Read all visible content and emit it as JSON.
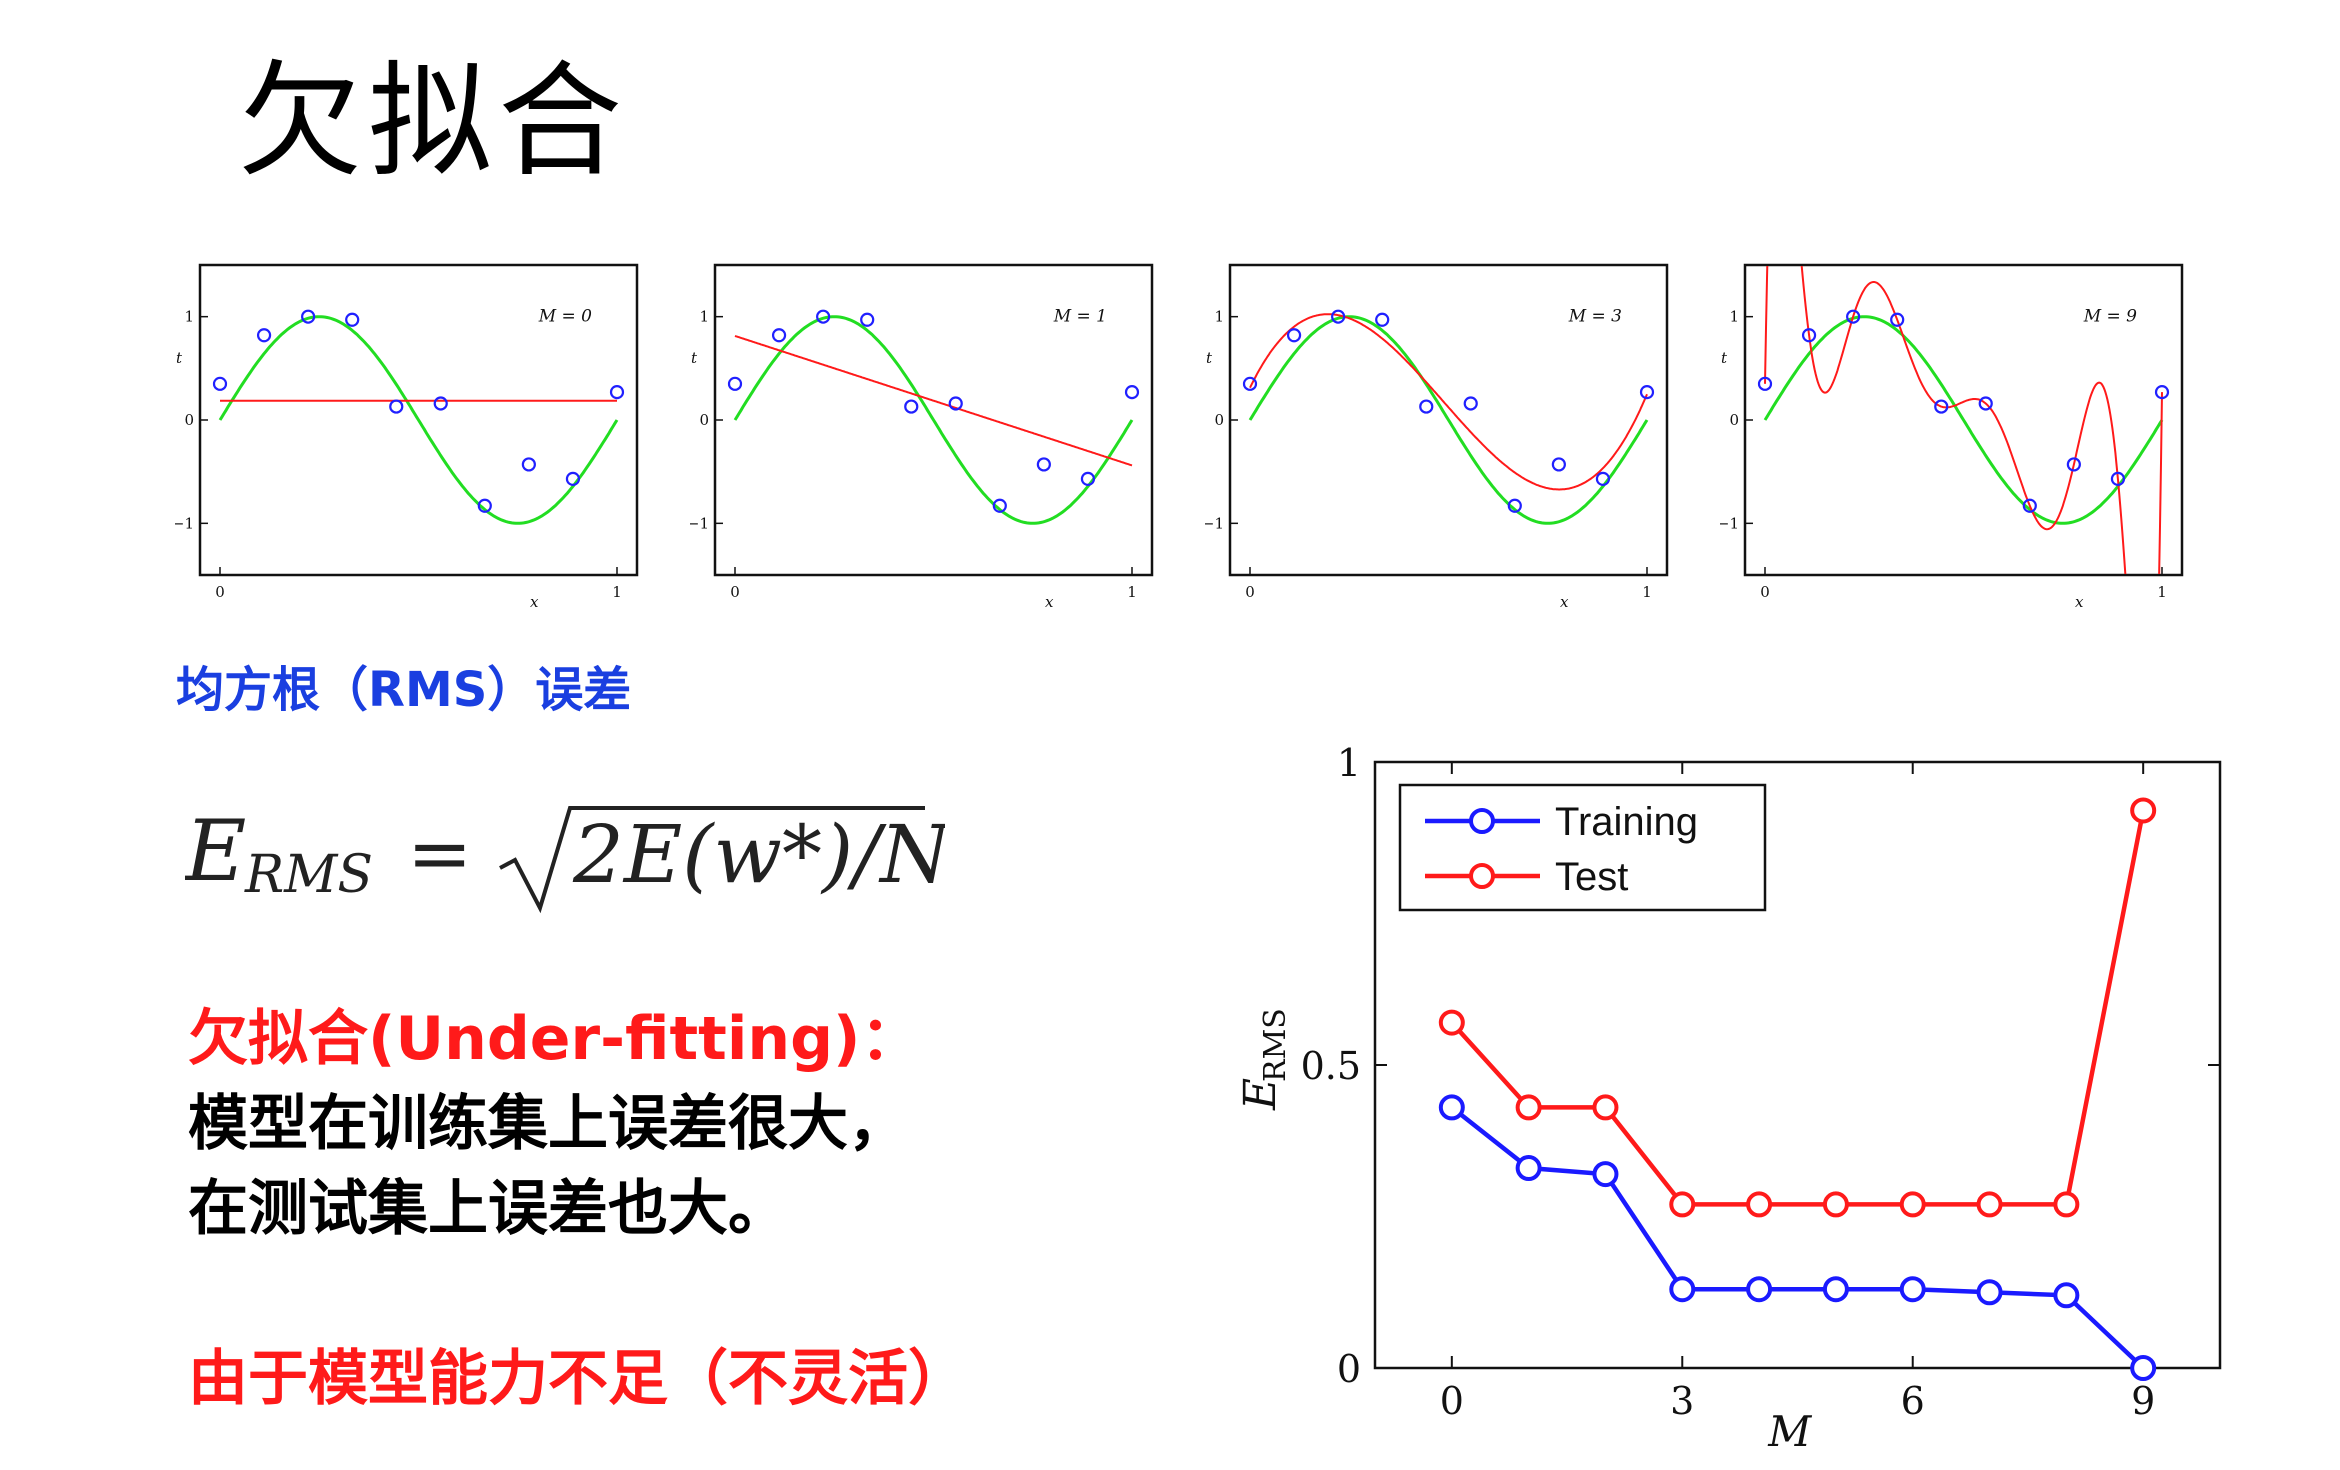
{
  "title": "欠拟合",
  "rms_heading": "均方根（RMS）误差",
  "formula": {
    "lhs_E": "E",
    "lhs_sub": "RMS",
    "equals": "=",
    "rhs": "2E(w*)/N"
  },
  "underfit": {
    "title": "欠拟合(Under-fitting)：",
    "line1": "模型在训练集上误差很大，",
    "line2": "在测试集上误差也大。",
    "reason": "由于模型能力不足（不灵活）"
  },
  "colors": {
    "heading_blue": "#1a3fe0",
    "emphasis_red": "#ff1a1a",
    "training": "#1a1aff",
    "test": "#ff1a1a",
    "true_curve": "#22dd22",
    "fit_curve": "#ff1a1a",
    "points": "#2020ff"
  },
  "chart_data": [
    {
      "type": "line",
      "label": "M = 0",
      "xlabel": "x",
      "ylabel": "t",
      "xlim": [
        0,
        1
      ],
      "ylim": [
        -1.5,
        1.5
      ],
      "x_ticks": [
        "0",
        "1"
      ],
      "y_ticks": [
        "−1",
        "0",
        "1"
      ],
      "points": {
        "x": [
          0,
          0.111,
          0.222,
          0.333,
          0.444,
          0.556,
          0.667,
          0.778,
          0.889,
          1.0
        ],
        "y": [
          0.35,
          0.82,
          1.0,
          0.97,
          0.13,
          0.16,
          -0.83,
          -0.43,
          -0.57,
          0.27
        ]
      },
      "true_curve": "sin(2πx)",
      "fit_degree": 0
    },
    {
      "type": "line",
      "label": "M = 1",
      "xlabel": "x",
      "ylabel": "t",
      "xlim": [
        0,
        1
      ],
      "ylim": [
        -1.5,
        1.5
      ],
      "x_ticks": [
        "0",
        "1"
      ],
      "y_ticks": [
        "−1",
        "0",
        "1"
      ],
      "points": {
        "x": [
          0,
          0.111,
          0.222,
          0.333,
          0.444,
          0.556,
          0.667,
          0.778,
          0.889,
          1.0
        ],
        "y": [
          0.35,
          0.82,
          1.0,
          0.97,
          0.13,
          0.16,
          -0.83,
          -0.43,
          -0.57,
          0.27
        ]
      },
      "true_curve": "sin(2πx)",
      "fit_degree": 1
    },
    {
      "type": "line",
      "label": "M = 3",
      "xlabel": "x",
      "ylabel": "t",
      "xlim": [
        0,
        1
      ],
      "ylim": [
        -1.5,
        1.5
      ],
      "x_ticks": [
        "0",
        "1"
      ],
      "y_ticks": [
        "−1",
        "0",
        "1"
      ],
      "points": {
        "x": [
          0,
          0.111,
          0.222,
          0.333,
          0.444,
          0.556,
          0.667,
          0.778,
          0.889,
          1.0
        ],
        "y": [
          0.35,
          0.82,
          1.0,
          0.97,
          0.13,
          0.16,
          -0.83,
          -0.43,
          -0.57,
          0.27
        ]
      },
      "true_curve": "sin(2πx)",
      "fit_degree": 3
    },
    {
      "type": "line",
      "label": "M = 9",
      "xlabel": "x",
      "ylabel": "t",
      "xlim": [
        0,
        1
      ],
      "ylim": [
        -1.5,
        1.5
      ],
      "x_ticks": [
        "0",
        "1"
      ],
      "y_ticks": [
        "−1",
        "0",
        "1"
      ],
      "points": {
        "x": [
          0,
          0.111,
          0.222,
          0.333,
          0.444,
          0.556,
          0.667,
          0.778,
          0.889,
          1.0
        ],
        "y": [
          0.35,
          0.82,
          1.0,
          0.97,
          0.13,
          0.16,
          -0.83,
          -0.43,
          -0.57,
          0.27
        ]
      },
      "true_curve": "sin(2πx)",
      "fit_degree": 9
    },
    {
      "type": "line",
      "xlabel": "M",
      "ylabel": "E_RMS",
      "xlim": [
        -1,
        10
      ],
      "ylim": [
        0,
        1
      ],
      "x_ticks": [
        0,
        3,
        6,
        9
      ],
      "y_ticks": [
        0,
        0.5,
        1
      ],
      "y_tick_labels": [
        "0",
        "0.5",
        "1"
      ],
      "legend_position": "top-left",
      "x": [
        0,
        1,
        2,
        3,
        4,
        5,
        6,
        7,
        8,
        9
      ],
      "series": [
        {
          "name": "Training",
          "values": [
            0.43,
            0.33,
            0.32,
            0.13,
            0.13,
            0.13,
            0.13,
            0.125,
            0.12,
            0.0
          ]
        },
        {
          "name": "Test",
          "values": [
            0.57,
            0.43,
            0.43,
            0.27,
            0.27,
            0.27,
            0.27,
            0.27,
            0.27,
            0.92
          ]
        }
      ]
    }
  ]
}
